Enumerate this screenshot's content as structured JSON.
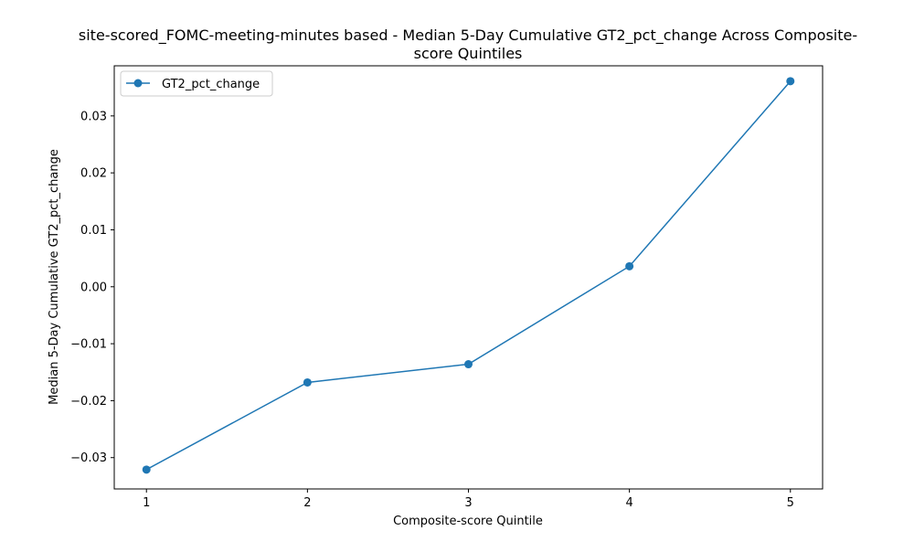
{
  "chart_data": {
    "type": "line",
    "title_line1": "site-scored_FOMC-meeting-minutes based - Median 5-Day Cumulative GT2_pct_change Across Composite-",
    "title_line2": "score Quintiles",
    "xlabel": "Composite-score Quintile",
    "ylabel": "Median 5-Day Cumulative GT2_pct_change",
    "x": [
      1,
      2,
      3,
      4,
      5
    ],
    "x_ticks": [
      "1",
      "2",
      "3",
      "4",
      "5"
    ],
    "xlim": [
      0.8,
      5.2
    ],
    "ylim": [
      -0.0355,
      0.0388
    ],
    "y_ticks": [
      -0.03,
      -0.02,
      -0.01,
      0.0,
      0.01,
      0.02,
      0.03
    ],
    "y_tick_labels": [
      "−0.03",
      "−0.02",
      "−0.01",
      "0.00",
      "0.01",
      "0.02",
      "0.03"
    ],
    "series": [
      {
        "name": "GT2_pct_change",
        "color": "#1f77b4",
        "marker": "circle",
        "values": [
          -0.0321,
          -0.0168,
          -0.0136,
          0.0036,
          0.0361
        ]
      }
    ],
    "legend_position": "upper-left",
    "grid": false
  }
}
